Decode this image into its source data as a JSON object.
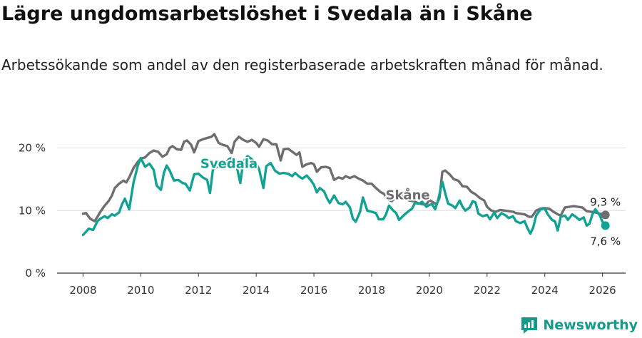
{
  "title": "Lägre ungdomsarbetslöshet i Svedala än i Skåne",
  "subtitle": "Arbetssökande som andel av den registerbaserade arbetskraften månad för månad.",
  "brand": "Newsworthy",
  "colors": {
    "svedala": "#12a294",
    "skane": "#6e6e72",
    "grid": "#dddddd",
    "axis": "#333333",
    "brand": "#159a8c"
  },
  "chart_data": {
    "type": "line",
    "title": "Lägre ungdomsarbetslöshet i Svedala än i Skåne",
    "xlabel": "",
    "ylabel": "",
    "ylim": [
      0,
      22
    ],
    "xlim": [
      2007.1,
      2026.8
    ],
    "y_ticks": [
      {
        "value": 0,
        "label": "0 %"
      },
      {
        "value": 10,
        "label": "10 %"
      },
      {
        "value": 20,
        "label": "20 %"
      }
    ],
    "x_ticks": [
      {
        "value": 2008,
        "label": "2008"
      },
      {
        "value": 2010,
        "label": "2010"
      },
      {
        "value": 2012,
        "label": "2012"
      },
      {
        "value": 2014,
        "label": "2014"
      },
      {
        "value": 2016,
        "label": "2016"
      },
      {
        "value": 2018,
        "label": "2018"
      },
      {
        "value": 2020,
        "label": "2020"
      },
      {
        "value": 2022,
        "label": "2022"
      },
      {
        "value": 2024,
        "label": "2024"
      },
      {
        "value": 2026,
        "label": "2026"
      }
    ],
    "series": [
      {
        "name": "Skåne",
        "inline_label": "Skåne",
        "end_label": "9,3 %",
        "points": [
          [
            2008.0,
            9.5
          ],
          [
            2008.1,
            9.6
          ],
          [
            2008.25,
            8.7
          ],
          [
            2008.4,
            8.3
          ],
          [
            2008.5,
            9.0
          ],
          [
            2008.6,
            9.8
          ],
          [
            2008.75,
            10.8
          ],
          [
            2008.9,
            11.6
          ],
          [
            2009.0,
            12.4
          ],
          [
            2009.1,
            13.6
          ],
          [
            2009.25,
            14.3
          ],
          [
            2009.4,
            14.8
          ],
          [
            2009.5,
            14.5
          ],
          [
            2009.6,
            15.3
          ],
          [
            2009.75,
            16.8
          ],
          [
            2009.9,
            17.8
          ],
          [
            2010.0,
            18.3
          ],
          [
            2010.15,
            18.5
          ],
          [
            2010.3,
            19.2
          ],
          [
            2010.45,
            19.6
          ],
          [
            2010.6,
            19.4
          ],
          [
            2010.75,
            18.6
          ],
          [
            2010.9,
            19.0
          ],
          [
            2011.0,
            20.0
          ],
          [
            2011.1,
            20.3
          ],
          [
            2011.25,
            19.8
          ],
          [
            2011.4,
            19.7
          ],
          [
            2011.5,
            21.0
          ],
          [
            2011.6,
            21.2
          ],
          [
            2011.75,
            20.5
          ],
          [
            2011.85,
            19.3
          ],
          [
            2012.0,
            21.1
          ],
          [
            2012.15,
            21.4
          ],
          [
            2012.3,
            21.6
          ],
          [
            2012.45,
            21.8
          ],
          [
            2012.55,
            22.2
          ],
          [
            2012.7,
            20.8
          ],
          [
            2012.85,
            20.5
          ],
          [
            2013.0,
            20.3
          ],
          [
            2013.15,
            19.2
          ],
          [
            2013.25,
            21.0
          ],
          [
            2013.4,
            21.8
          ],
          [
            2013.55,
            21.3
          ],
          [
            2013.7,
            21.0
          ],
          [
            2013.85,
            21.3
          ],
          [
            2014.0,
            20.8
          ],
          [
            2014.1,
            20.2
          ],
          [
            2014.25,
            21.4
          ],
          [
            2014.4,
            21.2
          ],
          [
            2014.55,
            20.6
          ],
          [
            2014.7,
            20.6
          ],
          [
            2014.85,
            18.0
          ],
          [
            2014.95,
            19.8
          ],
          [
            2015.1,
            19.9
          ],
          [
            2015.25,
            19.4
          ],
          [
            2015.4,
            18.9
          ],
          [
            2015.5,
            19.3
          ],
          [
            2015.6,
            17.0
          ],
          [
            2015.75,
            17.4
          ],
          [
            2015.9,
            17.6
          ],
          [
            2016.0,
            17.4
          ],
          [
            2016.1,
            16.2
          ],
          [
            2016.25,
            16.9
          ],
          [
            2016.4,
            17.0
          ],
          [
            2016.55,
            16.8
          ],
          [
            2016.7,
            14.9
          ],
          [
            2016.85,
            15.3
          ],
          [
            2017.0,
            15.1
          ],
          [
            2017.1,
            15.5
          ],
          [
            2017.25,
            15.2
          ],
          [
            2017.4,
            15.5
          ],
          [
            2017.55,
            15.1
          ],
          [
            2017.7,
            14.8
          ],
          [
            2017.85,
            14.3
          ],
          [
            2018.0,
            14.3
          ],
          [
            2018.15,
            13.6
          ],
          [
            2018.3,
            13.0
          ],
          [
            2018.45,
            12.6
          ],
          [
            2018.55,
            11.8
          ],
          [
            2018.7,
            11.5
          ],
          [
            2018.85,
            12.2
          ],
          [
            2019.0,
            12.5
          ],
          [
            2019.15,
            12.2
          ],
          [
            2019.3,
            11.6
          ],
          [
            2019.45,
            11.5
          ],
          [
            2019.6,
            11.2
          ],
          [
            2019.75,
            11.0
          ],
          [
            2019.9,
            11.0
          ],
          [
            2020.0,
            11.7
          ],
          [
            2020.1,
            11.4
          ],
          [
            2020.25,
            11.0
          ],
          [
            2020.35,
            12.0
          ],
          [
            2020.45,
            16.2
          ],
          [
            2020.55,
            16.4
          ],
          [
            2020.7,
            15.8
          ],
          [
            2020.85,
            15.0
          ],
          [
            2021.0,
            14.8
          ],
          [
            2021.15,
            13.9
          ],
          [
            2021.3,
            13.8
          ],
          [
            2021.45,
            13.0
          ],
          [
            2021.6,
            12.6
          ],
          [
            2021.75,
            12.0
          ],
          [
            2021.9,
            11.6
          ],
          [
            2022.0,
            10.6
          ],
          [
            2022.15,
            10.0
          ],
          [
            2022.3,
            9.8
          ],
          [
            2022.45,
            10.1
          ],
          [
            2022.6,
            10.0
          ],
          [
            2022.75,
            9.9
          ],
          [
            2022.9,
            9.8
          ],
          [
            2023.0,
            9.6
          ],
          [
            2023.15,
            9.5
          ],
          [
            2023.3,
            9.4
          ],
          [
            2023.45,
            9.0
          ],
          [
            2023.55,
            9.0
          ],
          [
            2023.7,
            10.0
          ],
          [
            2023.85,
            10.3
          ],
          [
            2024.0,
            10.4
          ],
          [
            2024.15,
            10.3
          ],
          [
            2024.3,
            9.8
          ],
          [
            2024.45,
            9.4
          ],
          [
            2024.55,
            9.2
          ],
          [
            2024.7,
            10.5
          ],
          [
            2024.85,
            10.6
          ],
          [
            2025.0,
            10.7
          ],
          [
            2025.15,
            10.6
          ],
          [
            2025.3,
            10.5
          ],
          [
            2025.45,
            9.9
          ],
          [
            2025.6,
            9.8
          ],
          [
            2025.75,
            9.7
          ],
          [
            2025.9,
            9.5
          ],
          [
            2026.1,
            9.3
          ]
        ]
      },
      {
        "name": "Svedala",
        "inline_label": "Svedala",
        "end_label": "7,6 %",
        "points": [
          [
            2008.0,
            6.1
          ],
          [
            2008.1,
            6.6
          ],
          [
            2008.2,
            7.1
          ],
          [
            2008.35,
            6.9
          ],
          [
            2008.5,
            8.3
          ],
          [
            2008.6,
            8.7
          ],
          [
            2008.75,
            9.1
          ],
          [
            2008.85,
            8.8
          ],
          [
            2009.0,
            9.4
          ],
          [
            2009.1,
            9.2
          ],
          [
            2009.25,
            9.7
          ],
          [
            2009.35,
            11.0
          ],
          [
            2009.45,
            11.9
          ],
          [
            2009.6,
            10.2
          ],
          [
            2009.75,
            14.5
          ],
          [
            2009.9,
            17.2
          ],
          [
            2010.0,
            18.4
          ],
          [
            2010.15,
            17.0
          ],
          [
            2010.3,
            17.5
          ],
          [
            2010.45,
            16.5
          ],
          [
            2010.55,
            14.0
          ],
          [
            2010.7,
            13.3
          ],
          [
            2010.8,
            16.0
          ],
          [
            2010.9,
            17.2
          ],
          [
            2011.0,
            16.4
          ],
          [
            2011.15,
            14.8
          ],
          [
            2011.3,
            14.9
          ],
          [
            2011.45,
            14.4
          ],
          [
            2011.55,
            14.3
          ],
          [
            2011.7,
            13.2
          ],
          [
            2011.85,
            15.8
          ],
          [
            2012.0,
            15.9
          ],
          [
            2012.15,
            15.3
          ],
          [
            2012.3,
            14.9
          ],
          [
            2012.4,
            12.8
          ],
          [
            2012.5,
            16.6
          ],
          [
            2012.65,
            17.0
          ],
          [
            2012.8,
            17.3
          ],
          [
            2012.95,
            17.5
          ],
          [
            2013.05,
            18.2
          ],
          [
            2013.15,
            18.4
          ],
          [
            2013.3,
            17.6
          ],
          [
            2013.45,
            14.4
          ],
          [
            2013.55,
            17.8
          ],
          [
            2013.7,
            18.7
          ],
          [
            2013.85,
            18.2
          ],
          [
            2014.0,
            17.5
          ],
          [
            2014.1,
            16.6
          ],
          [
            2014.25,
            13.6
          ],
          [
            2014.35,
            17.1
          ],
          [
            2014.5,
            17.6
          ],
          [
            2014.65,
            16.4
          ],
          [
            2014.8,
            15.9
          ],
          [
            2014.95,
            16.0
          ],
          [
            2015.1,
            15.9
          ],
          [
            2015.25,
            15.5
          ],
          [
            2015.35,
            16.0
          ],
          [
            2015.5,
            15.4
          ],
          [
            2015.6,
            15.1
          ],
          [
            2015.75,
            15.6
          ],
          [
            2015.9,
            14.8
          ],
          [
            2016.0,
            14.1
          ],
          [
            2016.1,
            12.9
          ],
          [
            2016.2,
            13.6
          ],
          [
            2016.35,
            13.1
          ],
          [
            2016.45,
            12.0
          ],
          [
            2016.55,
            11.2
          ],
          [
            2016.7,
            12.4
          ],
          [
            2016.85,
            11.2
          ],
          [
            2017.0,
            11.0
          ],
          [
            2017.1,
            11.4
          ],
          [
            2017.25,
            10.5
          ],
          [
            2017.35,
            8.7
          ],
          [
            2017.45,
            8.2
          ],
          [
            2017.6,
            9.8
          ],
          [
            2017.7,
            12.1
          ],
          [
            2017.85,
            10.0
          ],
          [
            2018.0,
            9.8
          ],
          [
            2018.15,
            9.6
          ],
          [
            2018.25,
            8.6
          ],
          [
            2018.4,
            8.6
          ],
          [
            2018.5,
            9.4
          ],
          [
            2018.6,
            10.8
          ],
          [
            2018.75,
            10.0
          ],
          [
            2018.85,
            9.6
          ],
          [
            2018.95,
            8.5
          ],
          [
            2019.1,
            9.2
          ],
          [
            2019.25,
            9.8
          ],
          [
            2019.4,
            10.3
          ],
          [
            2019.5,
            11.2
          ],
          [
            2019.65,
            11.1
          ],
          [
            2019.75,
            11.4
          ],
          [
            2019.9,
            10.6
          ],
          [
            2020.0,
            10.9
          ],
          [
            2020.1,
            11.0
          ],
          [
            2020.2,
            10.2
          ],
          [
            2020.3,
            11.6
          ],
          [
            2020.45,
            14.6
          ],
          [
            2020.55,
            12.8
          ],
          [
            2020.65,
            11.1
          ],
          [
            2020.8,
            10.8
          ],
          [
            2020.9,
            10.4
          ],
          [
            2021.05,
            11.6
          ],
          [
            2021.15,
            10.6
          ],
          [
            2021.25,
            10.0
          ],
          [
            2021.4,
            10.5
          ],
          [
            2021.5,
            11.5
          ],
          [
            2021.6,
            11.3
          ],
          [
            2021.7,
            9.5
          ],
          [
            2021.85,
            9.1
          ],
          [
            2022.0,
            9.3
          ],
          [
            2022.1,
            8.6
          ],
          [
            2022.25,
            9.7
          ],
          [
            2022.35,
            8.8
          ],
          [
            2022.5,
            9.6
          ],
          [
            2022.65,
            9.2
          ],
          [
            2022.75,
            8.8
          ],
          [
            2022.9,
            9.1
          ],
          [
            2023.0,
            8.3
          ],
          [
            2023.15,
            8.0
          ],
          [
            2023.3,
            8.3
          ],
          [
            2023.4,
            7.2
          ],
          [
            2023.5,
            6.3
          ],
          [
            2023.6,
            7.3
          ],
          [
            2023.7,
            9.2
          ],
          [
            2023.85,
            10.2
          ],
          [
            2024.0,
            10.3
          ],
          [
            2024.1,
            9.4
          ],
          [
            2024.25,
            8.5
          ],
          [
            2024.35,
            8.3
          ],
          [
            2024.45,
            6.8
          ],
          [
            2024.55,
            9.0
          ],
          [
            2024.7,
            9.2
          ],
          [
            2024.8,
            8.5
          ],
          [
            2024.95,
            9.4
          ],
          [
            2025.1,
            8.9
          ],
          [
            2025.2,
            8.5
          ],
          [
            2025.35,
            8.9
          ],
          [
            2025.45,
            7.6
          ],
          [
            2025.55,
            7.9
          ],
          [
            2025.65,
            9.4
          ],
          [
            2025.75,
            10.2
          ],
          [
            2025.9,
            9.3
          ],
          [
            2026.0,
            8.2
          ],
          [
            2026.1,
            7.6
          ]
        ]
      }
    ]
  }
}
